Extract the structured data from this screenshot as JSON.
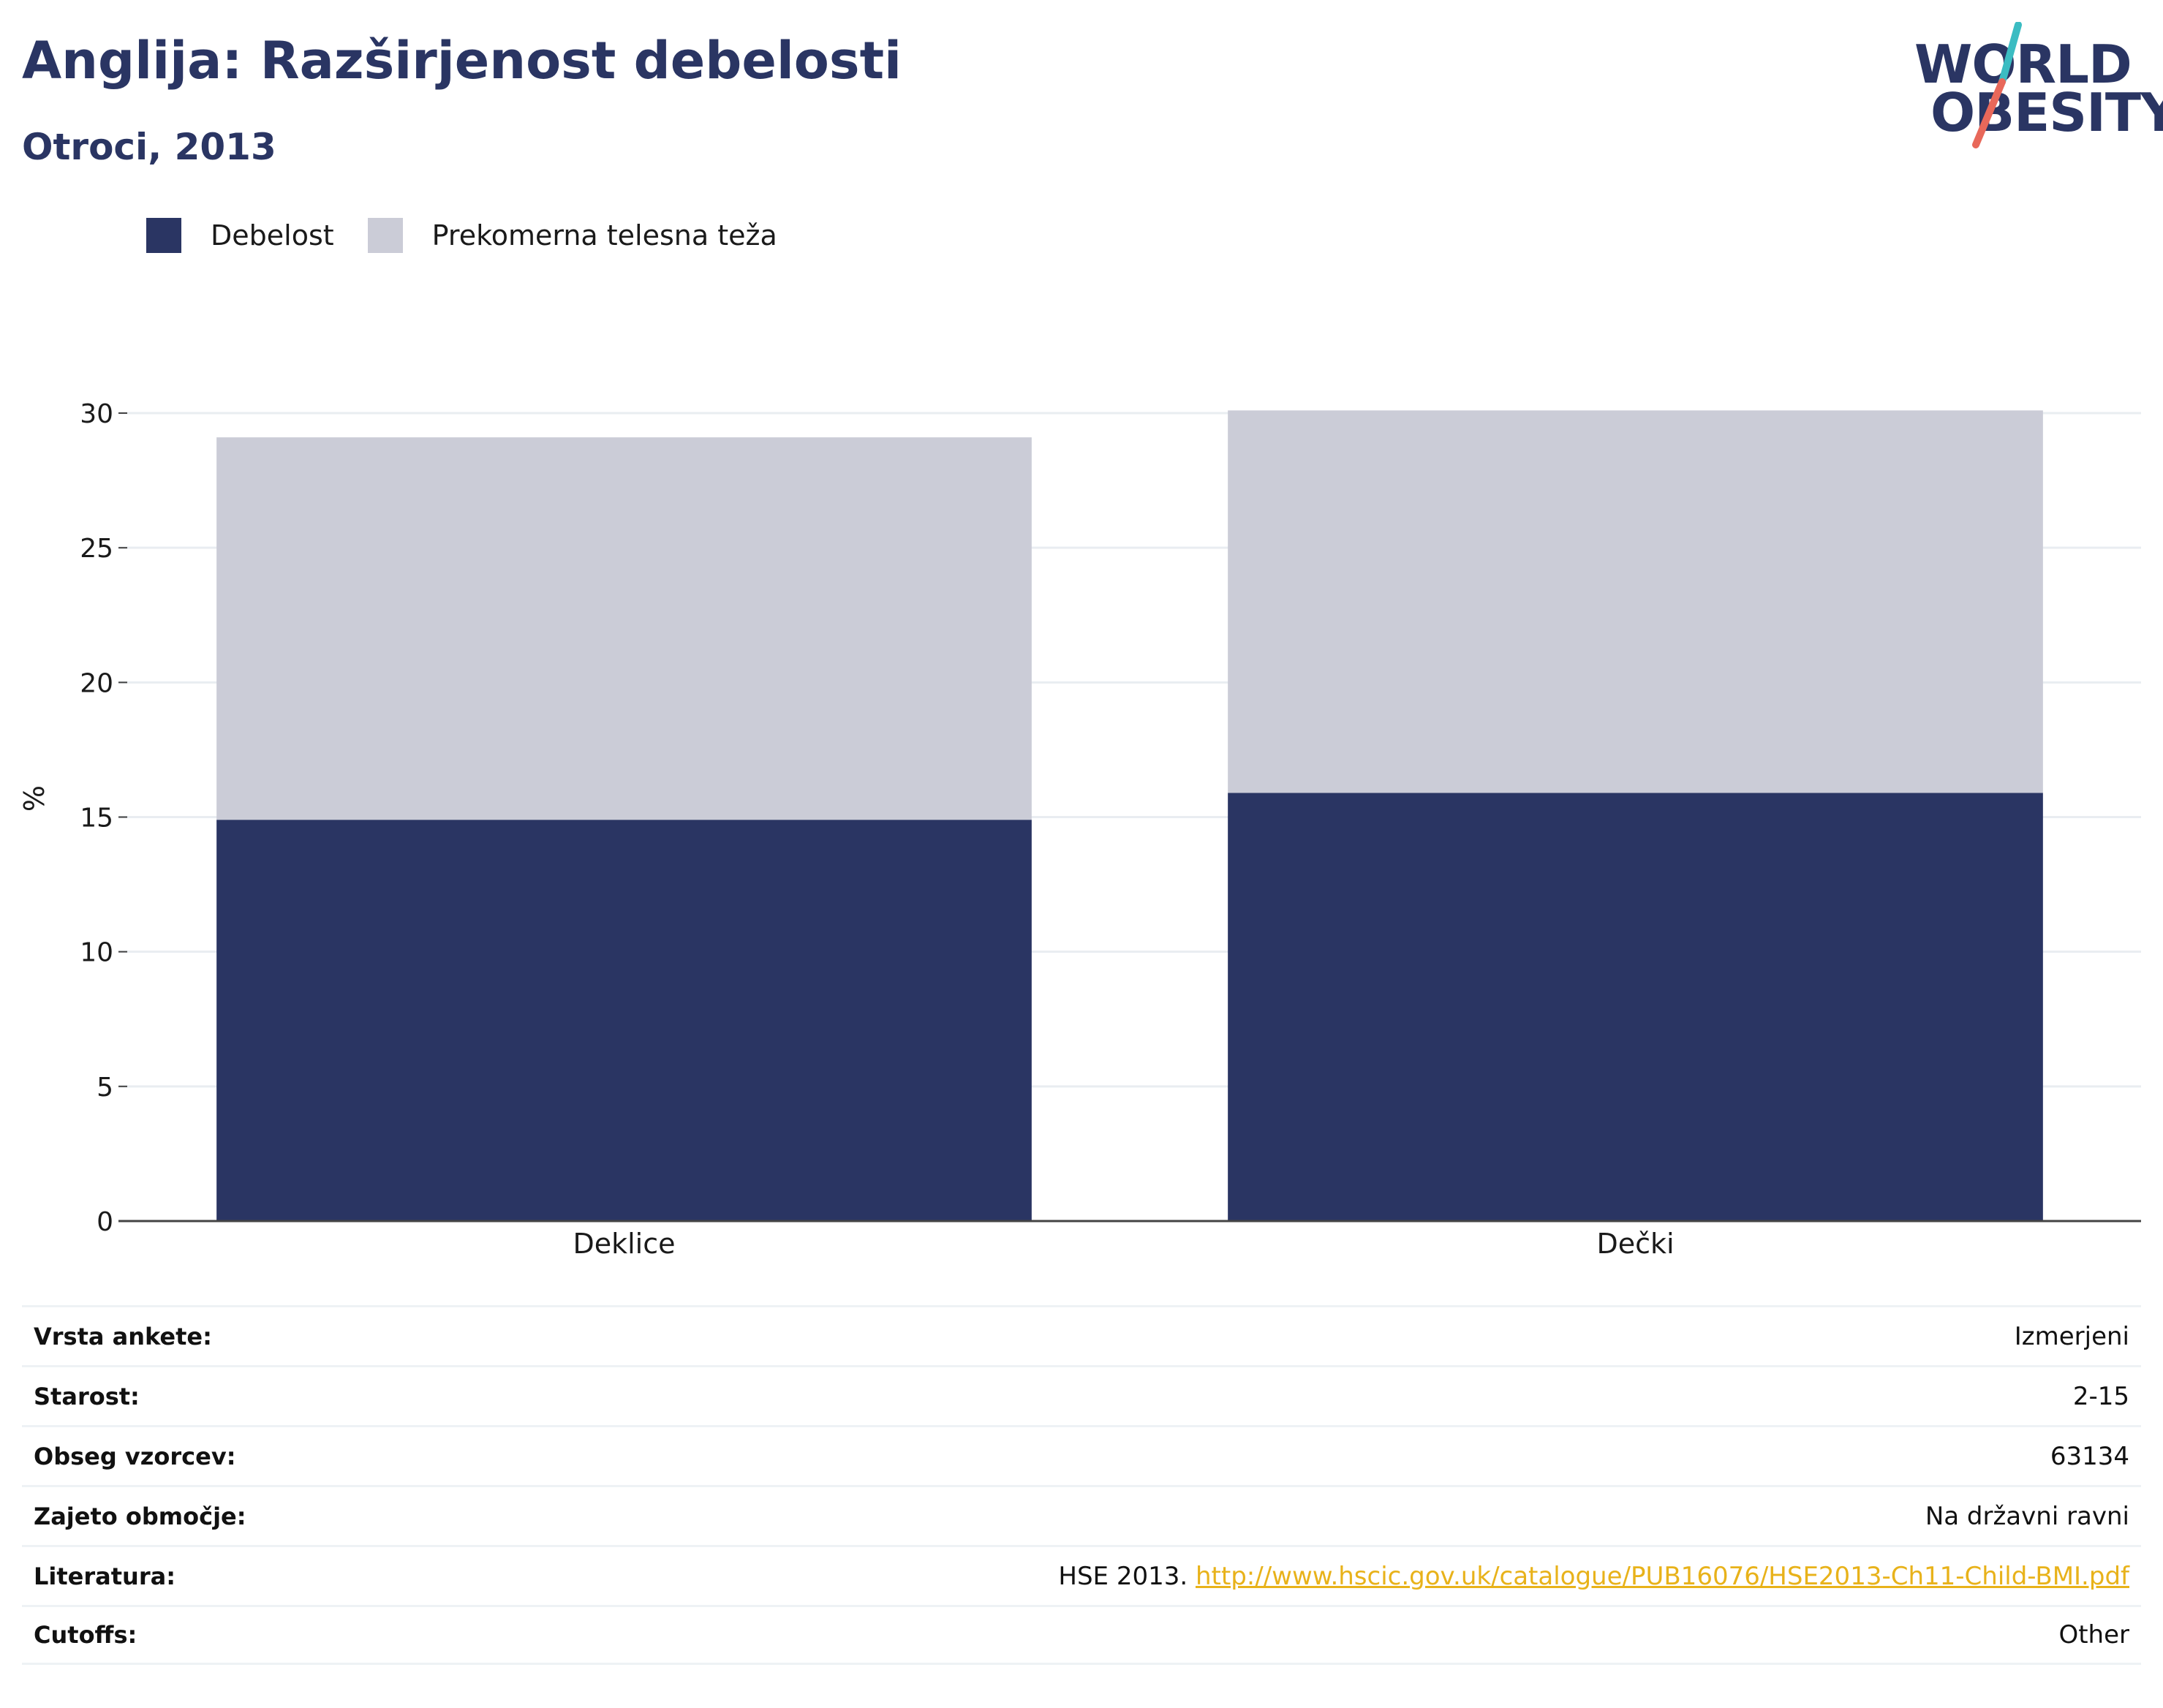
{
  "header": {
    "title": "Anglija: Razširjenost debelosti",
    "subtitle": "Otroci, 2013"
  },
  "logo": {
    "line1": "WORLD",
    "line2": "OBESITY",
    "colors": {
      "text": "#2a3563",
      "slash_top": "#3bbcc2",
      "slash_bottom": "#e8685a"
    }
  },
  "chart_data": {
    "type": "bar",
    "stacked": true,
    "categories": [
      "Deklice",
      "Dečki"
    ],
    "series": [
      {
        "name": "Debelost",
        "values": [
          14.9,
          15.9
        ],
        "color": "#2a3563"
      },
      {
        "name": "Prekomerna telesna teža",
        "values": [
          14.2,
          14.2
        ],
        "color": "#cbccd7"
      }
    ],
    "ylabel": "%",
    "xlabel": "",
    "ylim": [
      0,
      30
    ],
    "yticks": [
      0,
      5,
      10,
      15,
      20,
      25,
      30
    ],
    "grid": true,
    "legend_position": "top-left"
  },
  "meta": {
    "rows": [
      {
        "key": "Vrsta ankete:",
        "value": "Izmerjeni"
      },
      {
        "key": "Starost:",
        "value": "2-15"
      },
      {
        "key": "Obseg vzorcev:",
        "value": "63134"
      },
      {
        "key": "Zajeto območje:",
        "value": "Na državni ravni"
      },
      {
        "key": "Literatura:",
        "value": "HSE 2013.",
        "link": "http://www.hscic.gov.uk/catalogue/PUB16076/HSE2013-Ch11-Child-BMI.pdf"
      },
      {
        "key": "Cutoffs:",
        "value": "Other"
      }
    ]
  }
}
